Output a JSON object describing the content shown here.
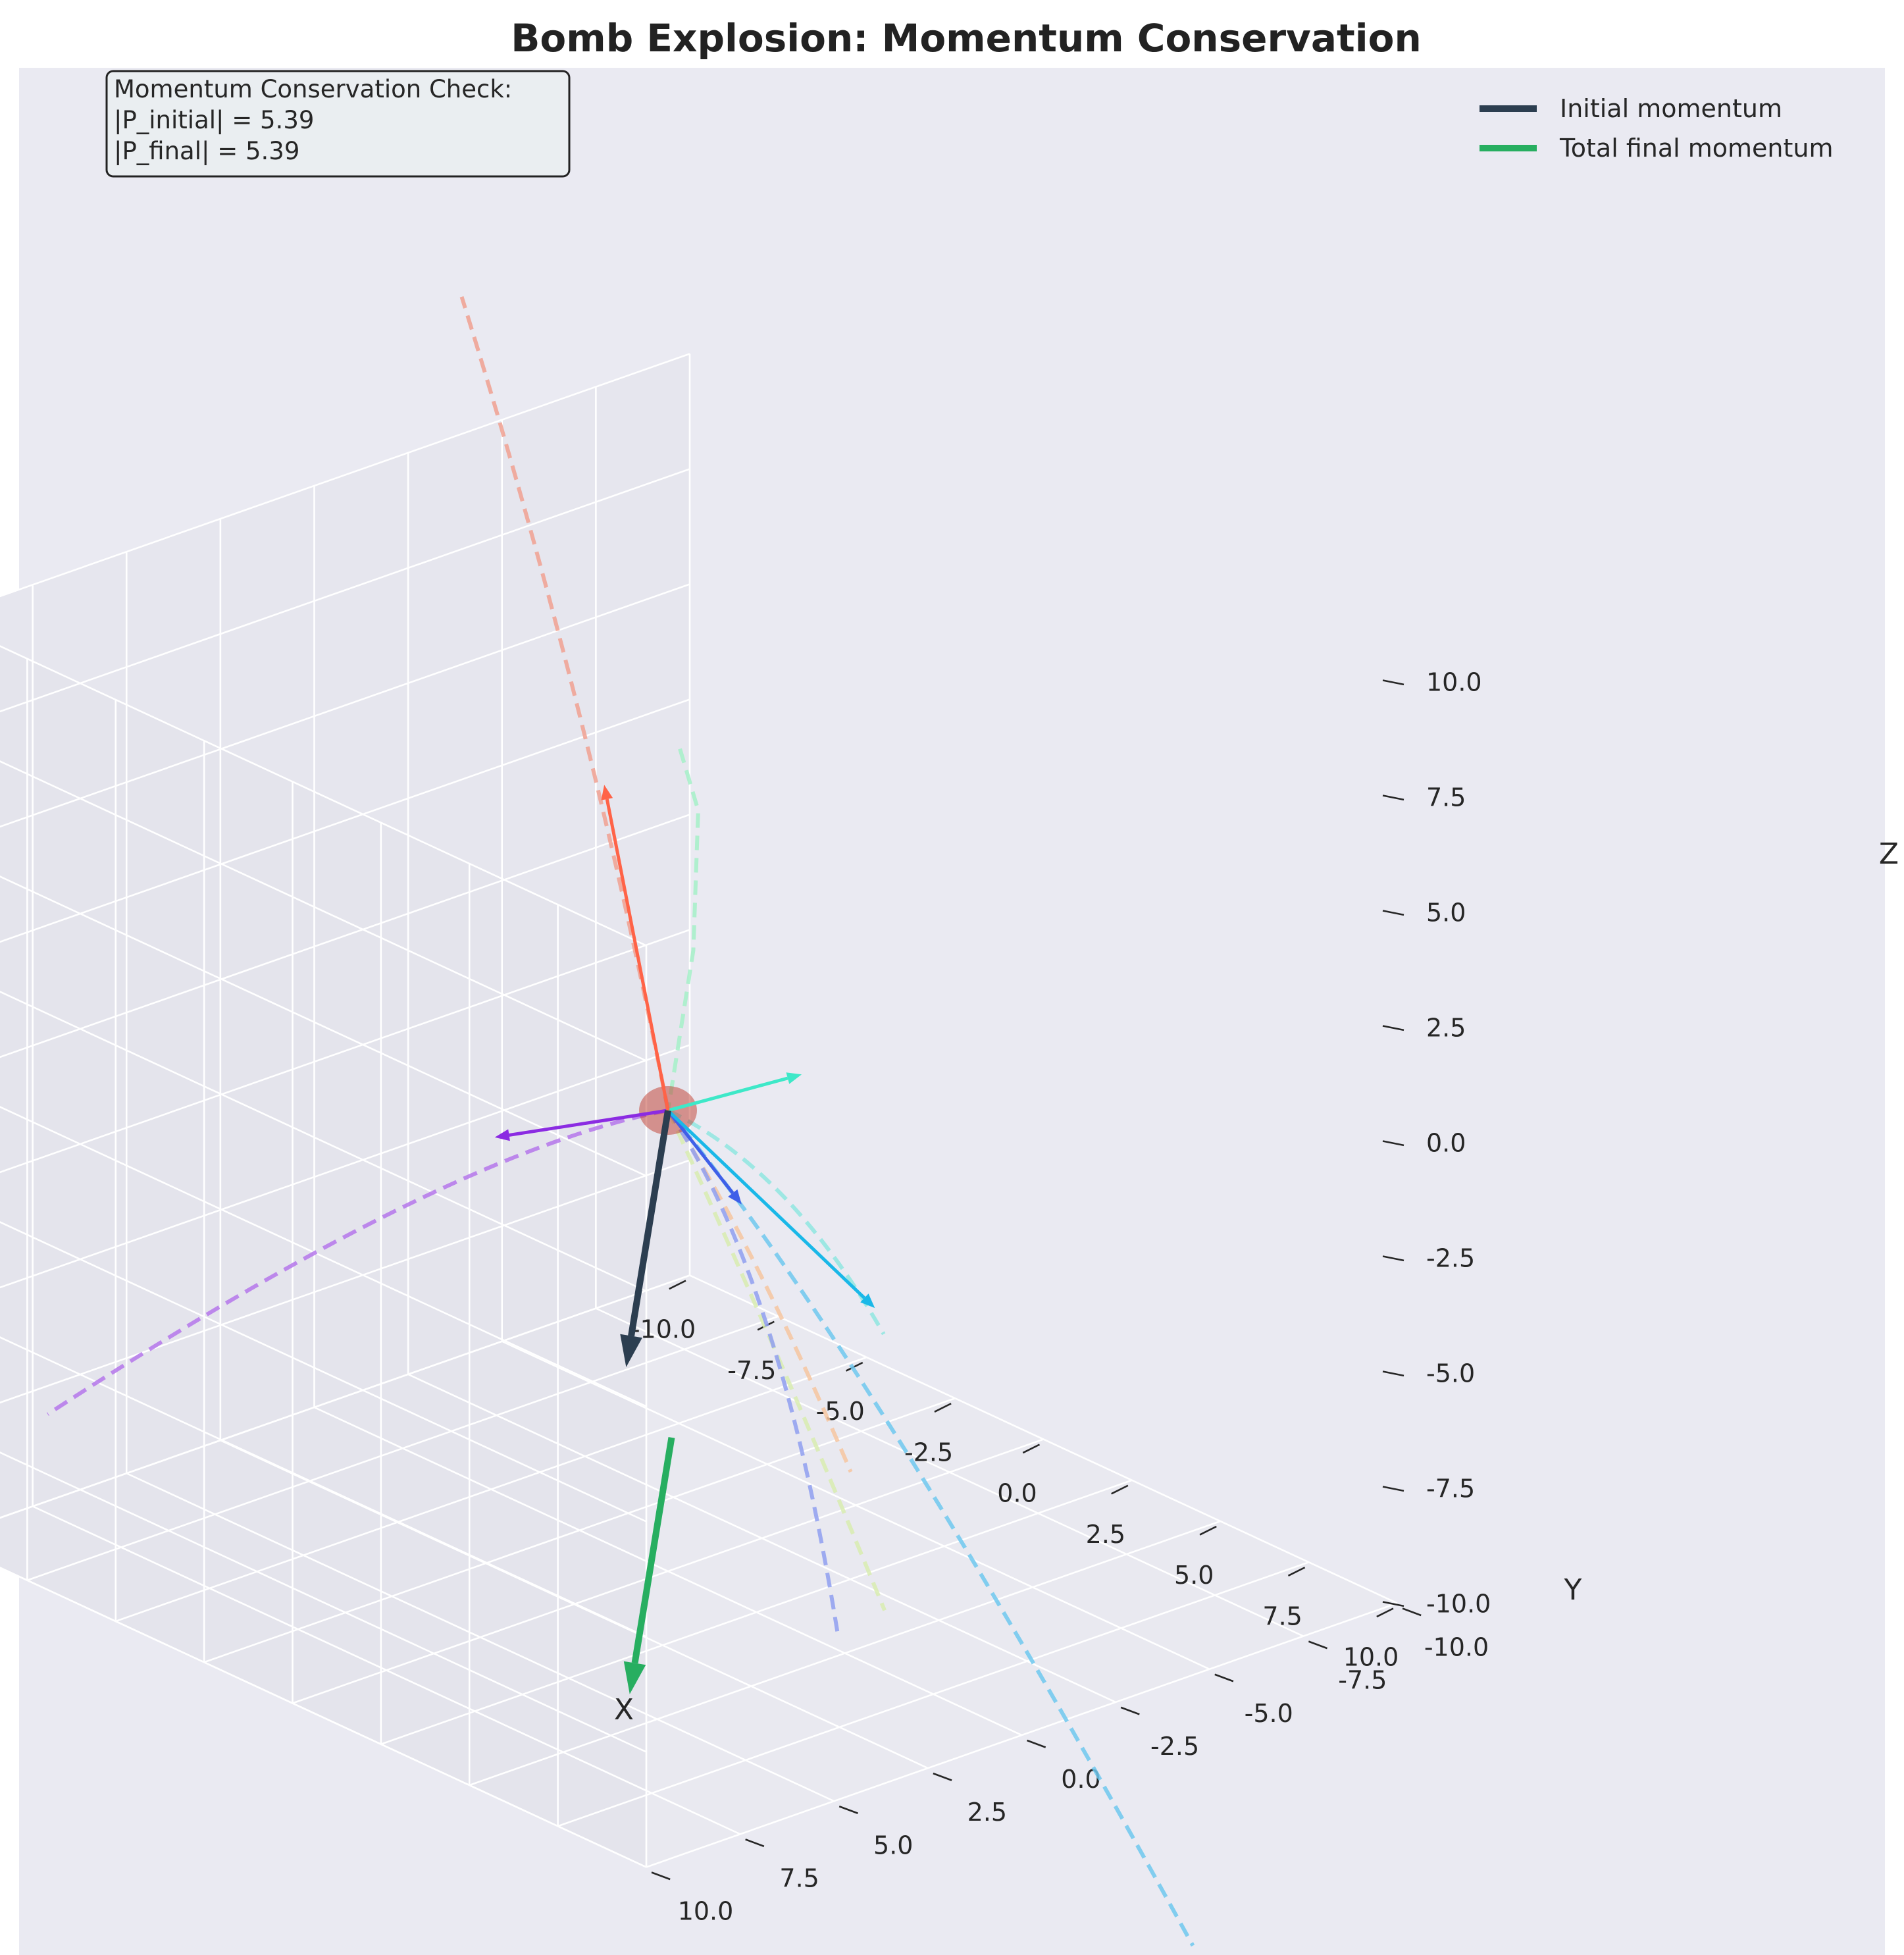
{
  "chart_data": {
    "type": "line",
    "title": "Bomb Explosion: Momentum Conservation",
    "xlabel": "X",
    "ylabel": "Y",
    "zlabel": "Z",
    "xlim": [
      -10,
      10
    ],
    "ylim": [
      -10,
      10
    ],
    "zlim": [
      -10,
      10
    ],
    "x_ticks": [
      "-10.0",
      "-7.5",
      "-5.0",
      "-2.5",
      "0.0",
      "2.5",
      "5.0",
      "7.5",
      "10.0"
    ],
    "y_ticks": [
      "-10.0",
      "-7.5",
      "-5.0",
      "-2.5",
      "0.0",
      "2.5",
      "5.0",
      "7.5",
      "10.0"
    ],
    "z_ticks": [
      "-10.0",
      "-7.5",
      "-5.0",
      "-2.5",
      "0.0",
      "2.5",
      "5.0",
      "7.5",
      "10.0"
    ],
    "grid": true,
    "legend_position": "top-right",
    "legend": [
      {
        "label": "Initial momentum",
        "color": "#2c3e50"
      },
      {
        "label": "Total final momentum",
        "color": "#27ae60"
      }
    ],
    "annotation": {
      "lines": [
        "Momentum Conservation Check:",
        "|P_initial| = 5.39",
        "|P_final| = 5.39"
      ]
    },
    "explosion_point": [
      0,
      0,
      0
    ],
    "initial_momentum": [
      2,
      3,
      -4
    ],
    "total_final_momentum": [
      2,
      3,
      -4
    ],
    "fragments": [
      {
        "color": "#8b2be2",
        "velocity": [
          -1.5,
          3.2,
          -0.2
        ]
      },
      {
        "color": "#3f5fe8",
        "velocity": [
          2.4,
          0.3,
          -1.1
        ]
      },
      {
        "color": "#1ab8e8",
        "velocity": [
          3.3,
          -2.4,
          -3.8
        ]
      },
      {
        "color": "#3ee8c8",
        "velocity": [
          0.7,
          -2.9,
          0.2
        ]
      },
      {
        "color": "#ff6347",
        "velocity": [
          -5.2,
          -3.2,
          4.3
        ]
      }
    ],
    "trajectories": [
      {
        "color": "#a5f0c8",
        "points": [
          [
            -12.4,
            -12.0,
            0.0
          ],
          [
            -7.0,
            -7.4,
            1.9
          ],
          [
            -3.0,
            -3.5,
            1.4
          ],
          [
            0.0,
            0.0,
            0.0
          ]
        ]
      },
      {
        "color": "#8fe6e0",
        "points": [
          [
            0.0,
            0.0,
            0.0
          ],
          [
            -0.5,
            -3.7,
            -2.5
          ],
          [
            -0.8,
            -6.5,
            -7.0
          ]
        ]
      },
      {
        "color": "#f6c5a0",
        "points": [
          [
            0.0,
            0.0,
            0.0
          ],
          [
            1.3,
            -1.0,
            -2.6
          ],
          [
            2.3,
            -2.7,
            -7.8
          ]
        ]
      },
      {
        "color": "#d8ecb0",
        "points": [
          [
            0.0,
            0.0,
            0.0
          ],
          [
            1.9,
            -0.8,
            -4.1
          ],
          [
            4.0,
            -2.0,
            -10.0
          ]
        ]
      },
      {
        "color": "#6fc8ef",
        "points": [
          [
            0.0,
            0.0,
            0.0
          ],
          [
            3.5,
            -1.9,
            -4.4
          ],
          [
            9.0,
            -5.5,
            -16.5
          ]
        ]
      },
      {
        "color": "#8f9ff0",
        "points": [
          [
            0.0,
            0.0,
            0.0
          ],
          [
            3.6,
            0.4,
            -2.2
          ],
          [
            6.4,
            1.5,
            -8.7
          ]
        ]
      },
      {
        "color": "#b577eb",
        "points": [
          [
            0.0,
            0.0,
            0.0
          ],
          [
            -1.9,
            4.0,
            -0.4
          ],
          [
            -3.1,
            13.6,
            -3.8
          ]
        ]
      },
      {
        "color": "#f0a090",
        "points": [
          [
            0.0,
            0.0,
            0.0
          ],
          [
            -6.5,
            -4.0,
            5.4
          ],
          [
            -12.2,
            -6.0,
            11.6
          ]
        ]
      }
    ],
    "colors": {
      "pane": "#eaeaf2",
      "grid": "#ffffff",
      "text": "#262626",
      "explosion": "#c0392b"
    }
  }
}
